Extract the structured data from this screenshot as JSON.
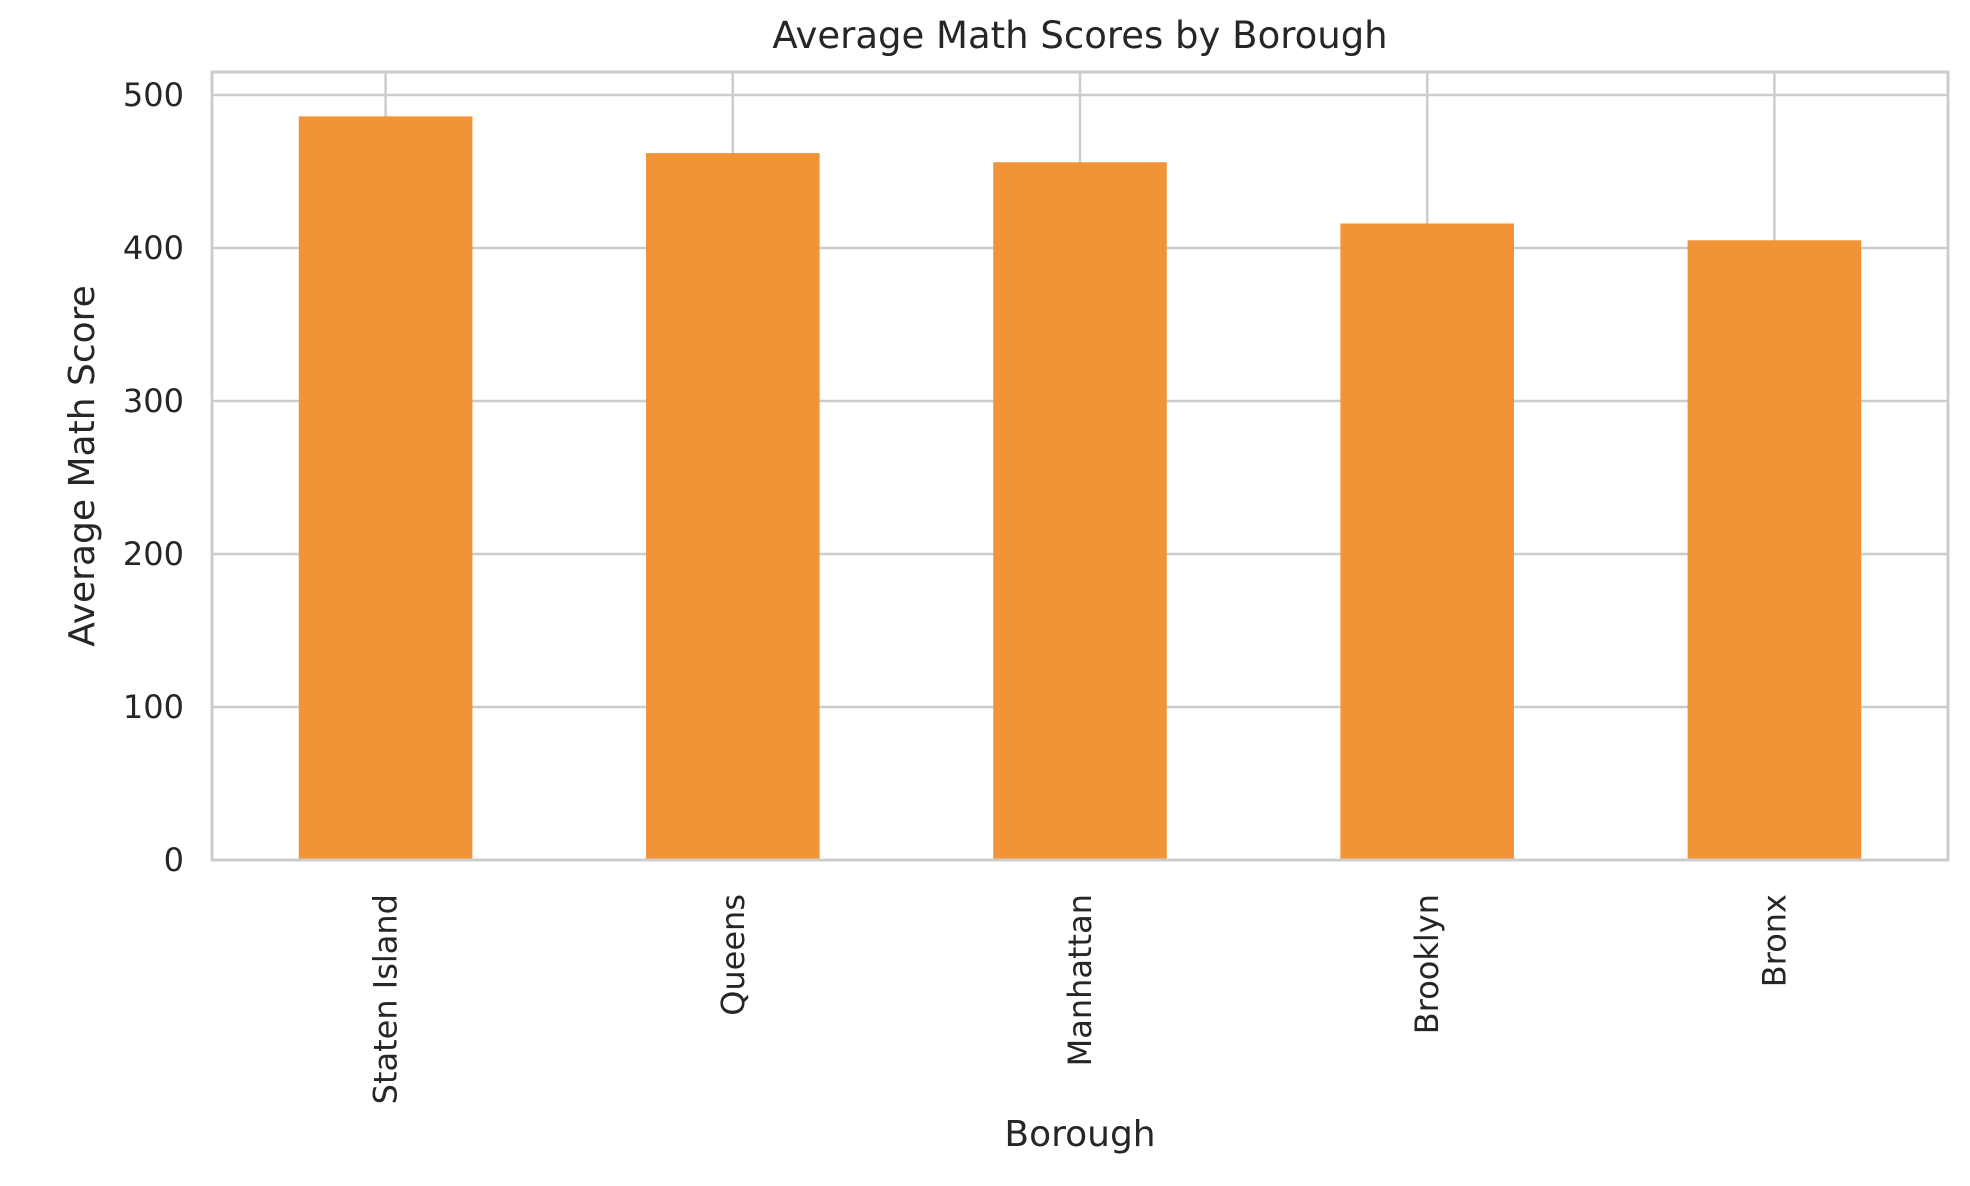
{
  "colors": {
    "bar": "#f09437",
    "grid": "#cccccc",
    "frame": "#cccccc",
    "text": "#262626"
  },
  "chart_data": {
    "type": "bar",
    "title": "Average Math Scores by Borough",
    "xlabel": "Borough",
    "ylabel": "Average Math Score",
    "categories": [
      "Staten Island",
      "Queens",
      "Manhattan",
      "Brooklyn",
      "Bronx"
    ],
    "values": [
      486,
      462,
      456,
      416,
      405
    ],
    "ylim": [
      0,
      515
    ],
    "yticks": [
      0,
      100,
      200,
      300,
      400,
      500
    ],
    "grid": true,
    "legend": "none"
  }
}
